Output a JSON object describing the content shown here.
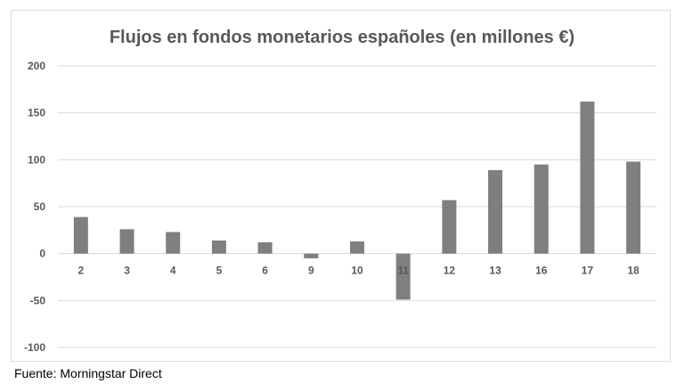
{
  "chart_data": {
    "type": "bar",
    "title": "Flujos en fondos monetarios españoles (en millones €)",
    "xlabel": "",
    "ylabel": "",
    "categories": [
      "2",
      "3",
      "4",
      "5",
      "6",
      "9",
      "10",
      "11",
      "12",
      "13",
      "16",
      "17",
      "18"
    ],
    "values": [
      39,
      26,
      23,
      14,
      12,
      -5,
      13,
      -49,
      57,
      89,
      95,
      162,
      98
    ],
    "ylim": [
      -100,
      200
    ],
    "yticks": [
      200,
      150,
      100,
      50,
      0,
      -50,
      -100
    ],
    "grid": true,
    "legend": "none",
    "colors": {
      "bar": "#7f7f7f",
      "grid": "#d9d9d9",
      "axis_text": "#595959",
      "title": "#595959"
    }
  },
  "footer": {
    "source": "Fuente: Morningstar Direct"
  }
}
